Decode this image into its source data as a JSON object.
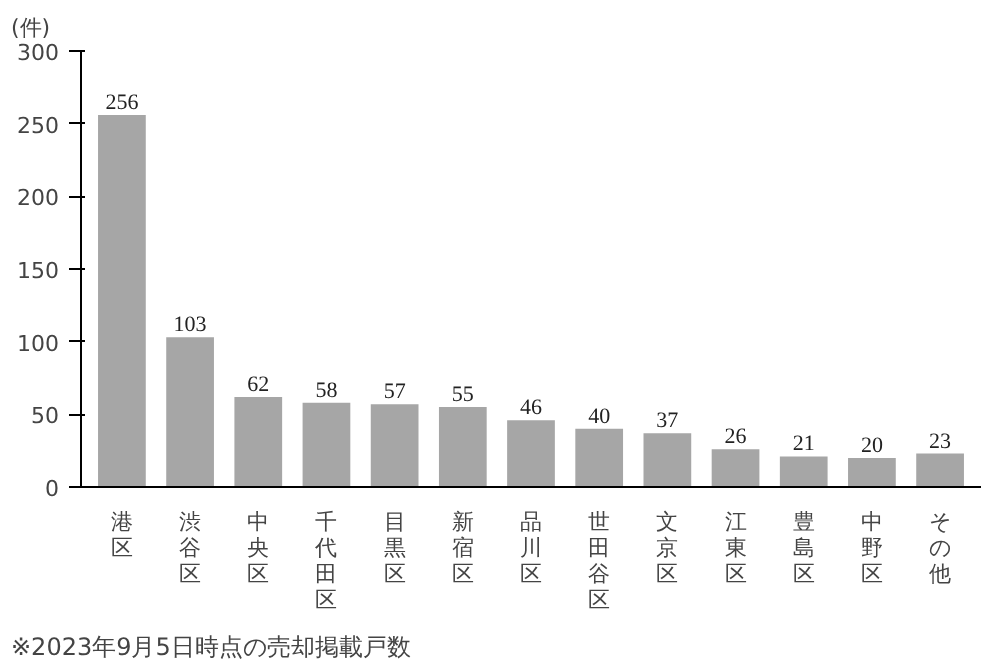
{
  "chart_data": {
    "type": "bar",
    "ylabel": "(件)",
    "categories": [
      "港区",
      "渋谷区",
      "中央区",
      "千代田区",
      "目黒区",
      "新宿区",
      "品川区",
      "世田谷区",
      "文京区",
      "江東区",
      "豊島区",
      "中野区",
      "その他"
    ],
    "values": [
      256,
      103,
      62,
      58,
      57,
      55,
      46,
      40,
      37,
      26,
      21,
      20,
      23
    ],
    "color": "#a6a6a6",
    "ylim": [
      0,
      300
    ],
    "yticks": [
      0,
      50,
      100,
      150,
      200,
      250,
      300
    ],
    "grid": false,
    "data_labels": true,
    "annotations": [
      "※2023年9月5日時点の売却掲載戸数"
    ]
  }
}
